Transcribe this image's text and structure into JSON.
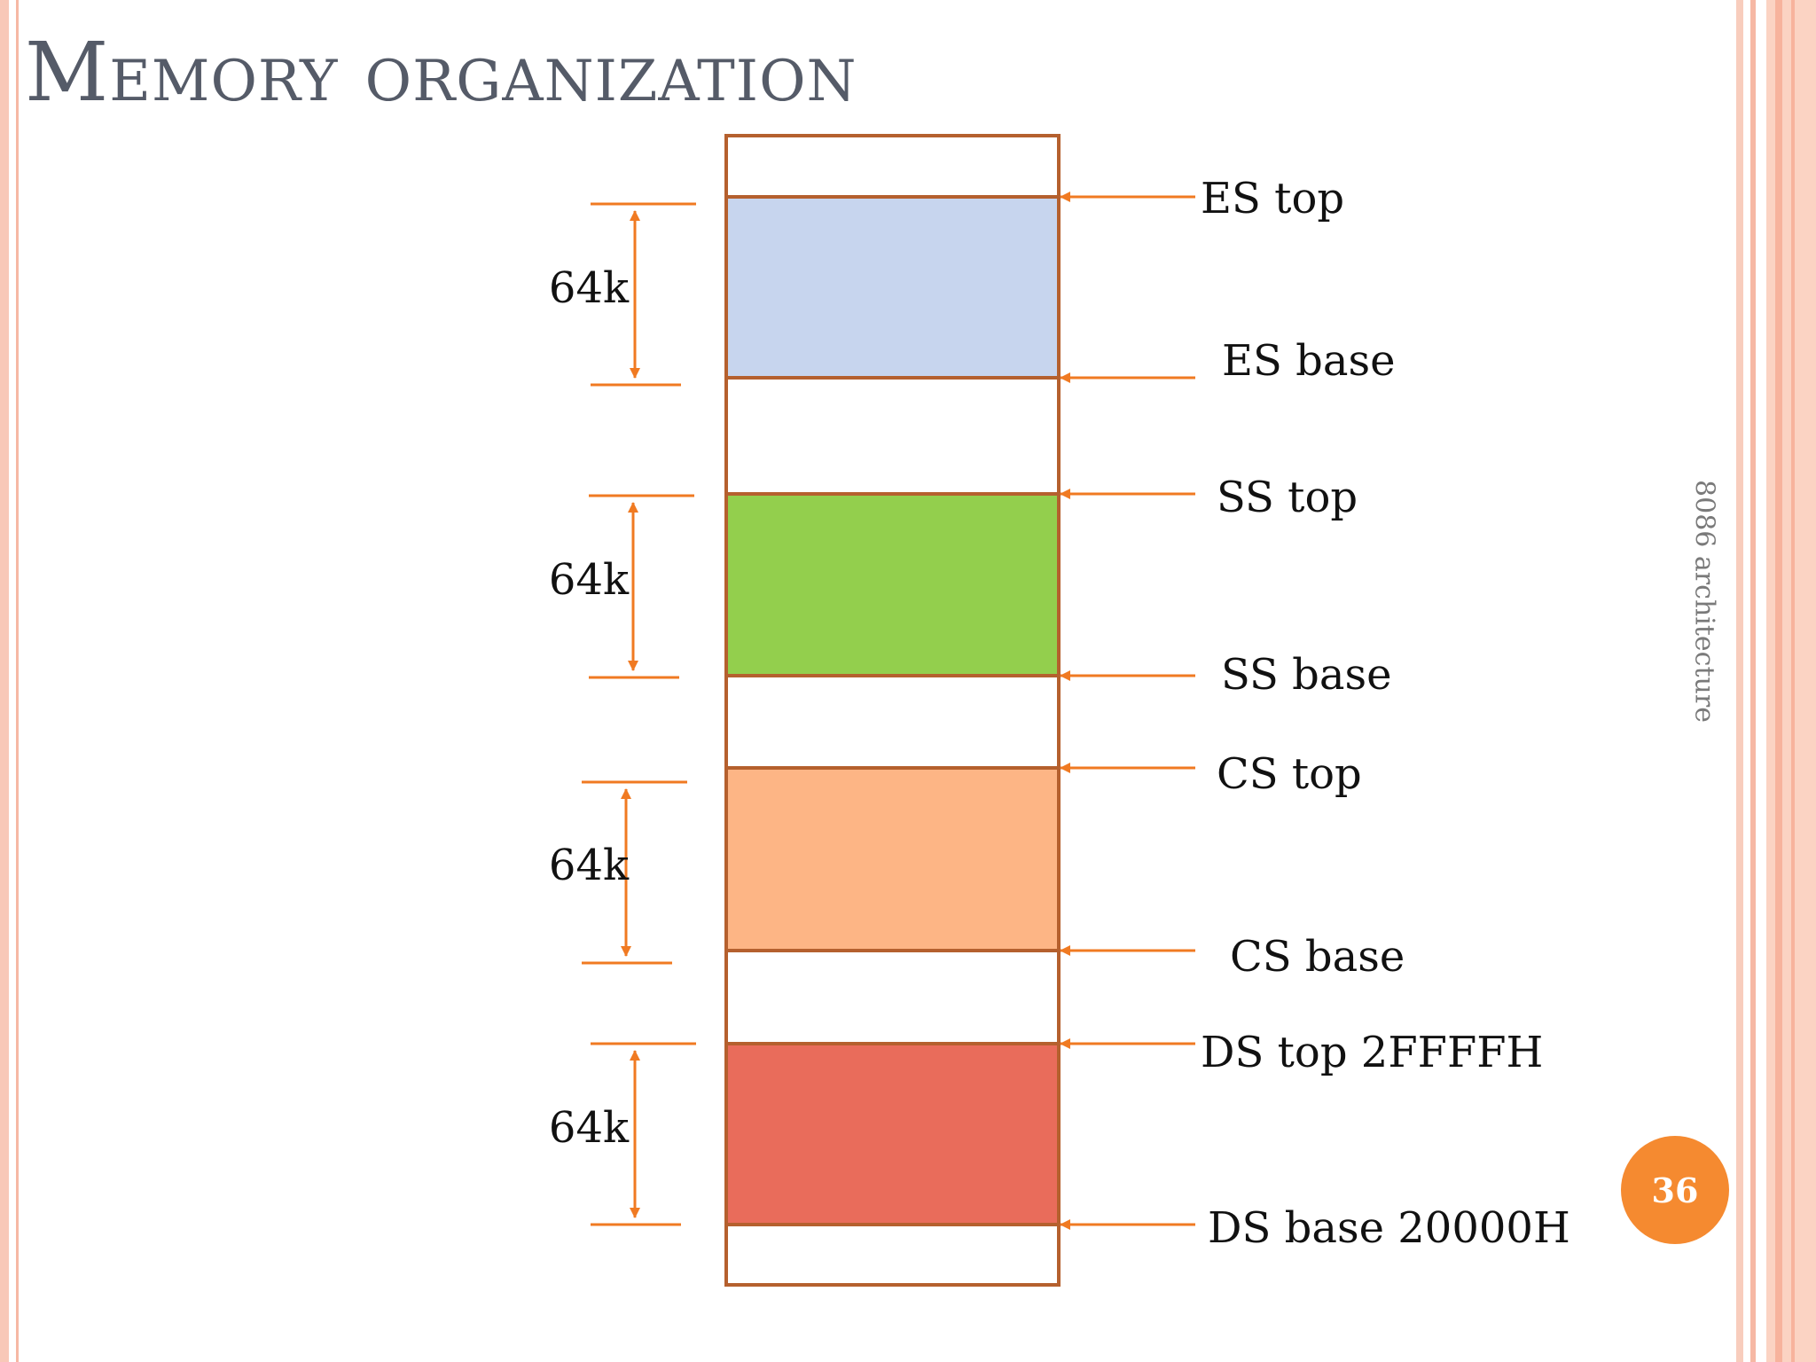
{
  "slide": {
    "title": "Memory organization",
    "side_label": "8086 architecture",
    "page_number": "36"
  },
  "diagram": {
    "segments": [
      {
        "id": "es",
        "name": "ES",
        "color": "#c7d5ee",
        "size_label": "64k",
        "top_label": "ES top",
        "base_label": "ES base"
      },
      {
        "id": "ss",
        "name": "SS",
        "color": "#93cf4d",
        "size_label": "64k",
        "top_label": "SS top",
        "base_label": "SS base"
      },
      {
        "id": "cs",
        "name": "CS",
        "color": "#fdb585",
        "size_label": "64k",
        "top_label": "CS top",
        "base_label": "CS base"
      },
      {
        "id": "ds",
        "name": "DS",
        "color": "#e96c5b",
        "size_label": "64k",
        "top_label": "DS top 2FFFFH",
        "base_label": "DS base 20000H"
      }
    ],
    "colors": {
      "border": "#b5602e",
      "arrow": "#f07a22"
    }
  }
}
